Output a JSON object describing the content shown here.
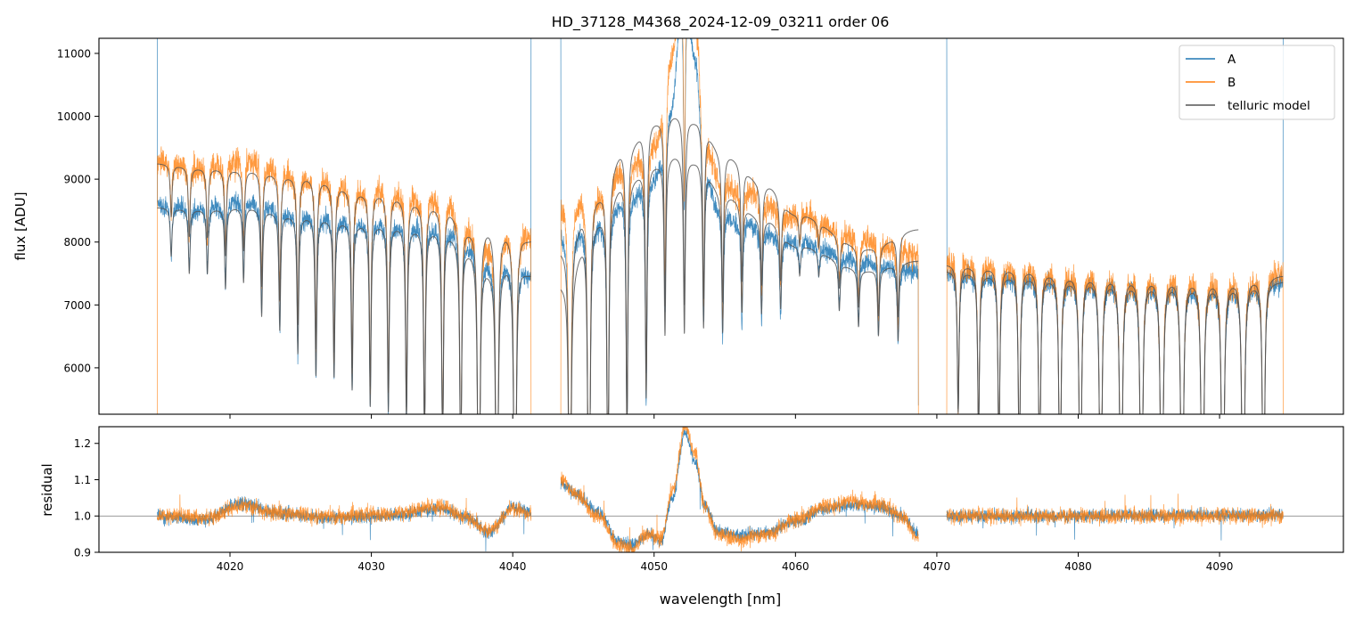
{
  "chart_data": {
    "type": "line",
    "title": "HD_37128_M4368_2024-12-09_03211  order 06",
    "xlabel": "wavelength [nm]",
    "colors": {
      "A": "#1f77b4",
      "B": "#ff7f0e",
      "model": "#555555",
      "axis": "#000000",
      "refline": "#777777"
    },
    "xlim": [
      4010.73,
      4098.76
    ],
    "xticks": [
      4020,
      4030,
      4040,
      4050,
      4060,
      4070,
      4080,
      4090
    ],
    "xtick_labels": [
      "4020",
      "4030",
      "4040",
      "4050",
      "4060",
      "4070",
      "4080",
      "4090"
    ],
    "top": {
      "ylabel": "flux [ADU]",
      "ylim": [
        5262,
        11240
      ],
      "yticks": [
        6000,
        7000,
        8000,
        9000,
        10000,
        11000
      ],
      "ytick_labels": [
        "6000",
        "7000",
        "8000",
        "9000",
        "10000",
        "11000"
      ],
      "legend": {
        "position": "upper right",
        "entries": [
          {
            "label": "A",
            "series": "A"
          },
          {
            "label": "B",
            "series": "B"
          },
          {
            "label": "telluric model",
            "series": "model"
          }
        ]
      }
    },
    "bottom": {
      "ylabel": "residual",
      "ylim": [
        0.9,
        1.246
      ],
      "yticks": [
        0.9,
        1.0,
        1.1,
        1.2
      ],
      "ytick_labels": [
        "0.9",
        "1.0",
        "1.1",
        "1.2"
      ],
      "reference_line": 1.0
    },
    "segments": [
      {
        "range": [
          4014.85,
          4041.3
        ],
        "lines": [
          [
            4015.84,
            0.09
          ],
          [
            4017.12,
            0.12
          ],
          [
            4018.4,
            0.12
          ],
          [
            4019.68,
            0.15
          ],
          [
            4020.96,
            0.14
          ],
          [
            4022.24,
            0.2
          ],
          [
            4023.52,
            0.22
          ],
          [
            4024.8,
            0.26
          ],
          [
            4026.08,
            0.3
          ],
          [
            4027.36,
            0.3
          ],
          [
            4028.64,
            0.32
          ],
          [
            4029.92,
            0.35
          ],
          [
            4031.2,
            0.36
          ],
          [
            4032.48,
            0.38
          ],
          [
            4033.76,
            0.42
          ],
          [
            4035.04,
            0.45
          ],
          [
            4036.32,
            0.5
          ],
          [
            4037.6,
            0.9
          ],
          [
            4038.88,
            0.95
          ],
          [
            4040.16,
            0.97
          ]
        ],
        "A": [
          [
            4014.85,
            8600
          ],
          [
            4018,
            8550
          ],
          [
            4021,
            8680
          ],
          [
            4025,
            8450
          ],
          [
            4030,
            8350
          ],
          [
            4035,
            8300
          ],
          [
            4037,
            8050
          ],
          [
            4038.5,
            7750
          ],
          [
            4040,
            7750
          ],
          [
            4041.3,
            7500
          ]
        ],
        "B": [
          [
            4014.85,
            9300
          ],
          [
            4018,
            9200
          ],
          [
            4021,
            9350
          ],
          [
            4025,
            9080
          ],
          [
            4030,
            8850
          ],
          [
            4035,
            8750
          ],
          [
            4037,
            8300
          ],
          [
            4038.5,
            8050
          ],
          [
            4040,
            8250
          ],
          [
            4041.3,
            8100
          ]
        ],
        "model_A": [
          [
            4014.85,
            8550
          ],
          [
            4018,
            8520
          ],
          [
            4021,
            8560
          ],
          [
            4025,
            8420
          ],
          [
            4030,
            8300
          ],
          [
            4035,
            8200
          ],
          [
            4037,
            7900
          ],
          [
            4038.5,
            7600
          ],
          [
            4040,
            7700
          ],
          [
            4041.3,
            7500
          ]
        ],
        "model_B": [
          [
            4014.85,
            9250
          ],
          [
            4018,
            9180
          ],
          [
            4021,
            9150
          ],
          [
            4025,
            9050
          ],
          [
            4030,
            8800
          ],
          [
            4035,
            8600
          ],
          [
            4037,
            8250
          ],
          [
            4038.5,
            8300
          ],
          [
            4040,
            8200
          ],
          [
            4041.3,
            8050
          ]
        ],
        "res_A": [
          [
            4014.85,
            1.0
          ],
          [
            4018,
            0.99
          ],
          [
            4021,
            1.035
          ],
          [
            4023,
            1.01
          ],
          [
            4027,
            0.995
          ],
          [
            4031,
            1.0
          ],
          [
            4035,
            1.02
          ],
          [
            4036.5,
            1.0
          ],
          [
            4038.3,
            0.955
          ],
          [
            4040,
            1.025
          ],
          [
            4041.3,
            1.01
          ]
        ],
        "res_B": [
          [
            4014.85,
            1.0
          ],
          [
            4018,
            0.995
          ],
          [
            4021,
            1.03
          ],
          [
            4023,
            1.01
          ],
          [
            4027,
            0.998
          ],
          [
            4031,
            1.005
          ],
          [
            4035,
            1.025
          ],
          [
            4036.5,
            1.0
          ],
          [
            4038.3,
            0.96
          ],
          [
            4040,
            1.02
          ],
          [
            4041.3,
            1.005
          ]
        ]
      },
      {
        "range": [
          4043.4,
          4068.7
        ],
        "lines": [
          [
            4044.04,
            0.95
          ],
          [
            4045.39,
            0.95
          ],
          [
            4046.73,
            0.6
          ],
          [
            4048.08,
            0.45
          ],
          [
            4049.44,
            0.4
          ],
          [
            4050.77,
            0.3
          ],
          [
            4052.14,
            0.3
          ],
          [
            4053.5,
            0.28
          ],
          [
            4054.85,
            0.25
          ],
          [
            4056.21,
            0.2
          ],
          [
            4057.6,
            0.18
          ],
          [
            4058.95,
            0.15
          ],
          [
            4060.3,
            0.06
          ],
          [
            4061.65,
            0.05
          ],
          [
            4063.1,
            0.1
          ],
          [
            4064.46,
            0.12
          ],
          [
            4065.87,
            0.14
          ],
          [
            4067.26,
            0.16
          ]
        ],
        "A": [
          [
            4043.4,
            8200
          ],
          [
            4046,
            8350
          ],
          [
            4048,
            8750
          ],
          [
            4050,
            9050
          ],
          [
            4051.2,
            10200
          ],
          [
            4052.1,
            12200
          ],
          [
            4052.9,
            11000
          ],
          [
            4053.6,
            9200
          ],
          [
            4054.5,
            8600
          ],
          [
            4056,
            8350
          ],
          [
            4060,
            8000
          ],
          [
            4065,
            7700
          ],
          [
            4068.7,
            7550
          ]
        ],
        "B": [
          [
            4043.4,
            8700
          ],
          [
            4046,
            8850
          ],
          [
            4048,
            9300
          ],
          [
            4050,
            9600
          ],
          [
            4051.2,
            11000
          ],
          [
            4052.1,
            12600
          ],
          [
            4052.9,
            11600
          ],
          [
            4053.6,
            9700
          ],
          [
            4054.5,
            9150
          ],
          [
            4056,
            8850
          ],
          [
            4060,
            8450
          ],
          [
            4065,
            8050
          ],
          [
            4068.7,
            7800
          ]
        ],
        "model_A": [
          [
            4043.4,
            7350
          ],
          [
            4046,
            8400
          ],
          [
            4048,
            9000
          ],
          [
            4050,
            9250
          ],
          [
            4051.5,
            9400
          ],
          [
            4053,
            9300
          ],
          [
            4055,
            8750
          ],
          [
            4058,
            8350
          ],
          [
            4060,
            7950
          ],
          [
            4065,
            7550
          ],
          [
            4068.7,
            7700
          ]
        ],
        "model_B": [
          [
            4043.4,
            7900
          ],
          [
            4046,
            8800
          ],
          [
            4048,
            9550
          ],
          [
            4050,
            9950
          ],
          [
            4051.5,
            10050
          ],
          [
            4053,
            9950
          ],
          [
            4055,
            9400
          ],
          [
            4058,
            8900
          ],
          [
            4060,
            8450
          ],
          [
            4065,
            7900
          ],
          [
            4068.7,
            8200
          ]
        ],
        "res_A": [
          [
            4043.4,
            1.09
          ],
          [
            4044.5,
            1.06
          ],
          [
            4046,
            1.01
          ],
          [
            4047.5,
            0.93
          ],
          [
            4048.5,
            0.92
          ],
          [
            4049.5,
            0.95
          ],
          [
            4050.5,
            0.93
          ],
          [
            4051.3,
            1.05
          ],
          [
            4052.2,
            1.23
          ],
          [
            4052.9,
            1.15
          ],
          [
            4053.6,
            1.03
          ],
          [
            4054.5,
            0.96
          ],
          [
            4056,
            0.95
          ],
          [
            4058,
            0.955
          ],
          [
            4060,
            0.985
          ],
          [
            4062,
            1.02
          ],
          [
            4064,
            1.03
          ],
          [
            4066,
            1.025
          ],
          [
            4067.5,
            1.0
          ],
          [
            4068.7,
            0.95
          ]
        ],
        "res_B": [
          [
            4043.4,
            1.1
          ],
          [
            4044.5,
            1.06
          ],
          [
            4046,
            1.0
          ],
          [
            4047.5,
            0.92
          ],
          [
            4048.5,
            0.91
          ],
          [
            4049.5,
            0.95
          ],
          [
            4050.5,
            0.94
          ],
          [
            4051.3,
            1.07
          ],
          [
            4052.2,
            1.25
          ],
          [
            4052.9,
            1.17
          ],
          [
            4053.6,
            1.02
          ],
          [
            4054.5,
            0.95
          ],
          [
            4056,
            0.935
          ],
          [
            4058,
            0.95
          ],
          [
            4060,
            0.99
          ],
          [
            4062,
            1.025
          ],
          [
            4064,
            1.04
          ],
          [
            4066,
            1.03
          ],
          [
            4067.5,
            1.0
          ],
          [
            4068.7,
            0.94
          ]
        ]
      },
      {
        "range": [
          4070.7,
          4094.5
        ],
        "lines": [
          [
            4071.51,
            0.3
          ],
          [
            4072.95,
            0.35
          ],
          [
            4074.39,
            0.4
          ],
          [
            4075.83,
            0.45
          ],
          [
            4077.27,
            0.5
          ],
          [
            4078.71,
            0.6
          ],
          [
            4080.15,
            0.7
          ],
          [
            4081.59,
            0.8
          ],
          [
            4083.03,
            0.9
          ],
          [
            4084.47,
            0.9
          ],
          [
            4085.91,
            0.95
          ],
          [
            4087.35,
            0.95
          ],
          [
            4088.79,
            0.95
          ],
          [
            4090.23,
            0.95
          ],
          [
            4091.67,
            0.95
          ],
          [
            4093.11,
            0.7
          ]
        ],
        "A": [
          [
            4070.7,
            7550
          ],
          [
            4075,
            7500
          ],
          [
            4080,
            7430
          ],
          [
            4085,
            7400
          ],
          [
            4090,
            7350
          ],
          [
            4094.5,
            7400
          ]
        ],
        "B": [
          [
            4070.7,
            7700
          ],
          [
            4075,
            7620
          ],
          [
            4080,
            7530
          ],
          [
            4085,
            7500
          ],
          [
            4090,
            7450
          ],
          [
            4094.5,
            7500
          ]
        ],
        "model_A": [
          [
            4070.7,
            7550
          ],
          [
            4075,
            7480
          ],
          [
            4080,
            7420
          ],
          [
            4085,
            7380
          ],
          [
            4090,
            7350
          ],
          [
            4094.5,
            7380
          ]
        ],
        "model_B": [
          [
            4070.7,
            7650
          ],
          [
            4075,
            7600
          ],
          [
            4080,
            7500
          ],
          [
            4085,
            7470
          ],
          [
            4090,
            7430
          ],
          [
            4094.5,
            7480
          ]
        ],
        "res_A": [
          [
            4070.7,
            1.0
          ],
          [
            4080,
            1.0
          ],
          [
            4094.5,
            1.005
          ]
        ],
        "res_B": [
          [
            4070.7,
            1.0
          ],
          [
            4080,
            1.0
          ],
          [
            4094.5,
            1.0
          ]
        ]
      }
    ]
  }
}
